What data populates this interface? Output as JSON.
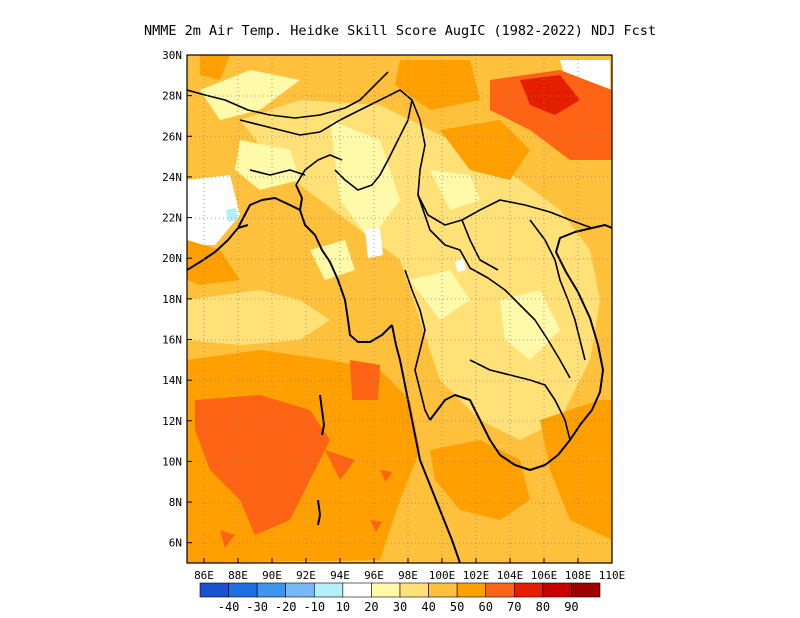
{
  "title": "NMME  2m Air Temp. Heidke Skill Score AugIC (1982-2022) NDJ Fcst",
  "map": {
    "lon_range": [
      85,
      110
    ],
    "lat_range": [
      5,
      30
    ],
    "lon_ticks": [
      "86E",
      "88E",
      "90E",
      "92E",
      "94E",
      "96E",
      "98E",
      "100E",
      "102E",
      "104E",
      "106E",
      "108E",
      "110E"
    ],
    "lat_ticks": [
      "30N",
      "28N",
      "26N",
      "24N",
      "22N",
      "20N",
      "18N",
      "16N",
      "14N",
      "12N",
      "10N",
      "8N",
      "6N"
    ],
    "grid": "dotted"
  },
  "colorbar": {
    "labels": [
      "-40",
      "-30",
      "-20",
      "-10",
      "10",
      "20",
      "30",
      "40",
      "50",
      "60",
      "70",
      "80",
      "90"
    ],
    "colors": [
      "#1e6ee6",
      "#3c96f0",
      "#78b9f5",
      "#b4f0fa",
      "#ffffff",
      "#fffaaa",
      "#ffe178",
      "#ffc03c",
      "#ffa000",
      "#ff6414",
      "#e61e00",
      "#c80000",
      "#a00000"
    ]
  }
}
